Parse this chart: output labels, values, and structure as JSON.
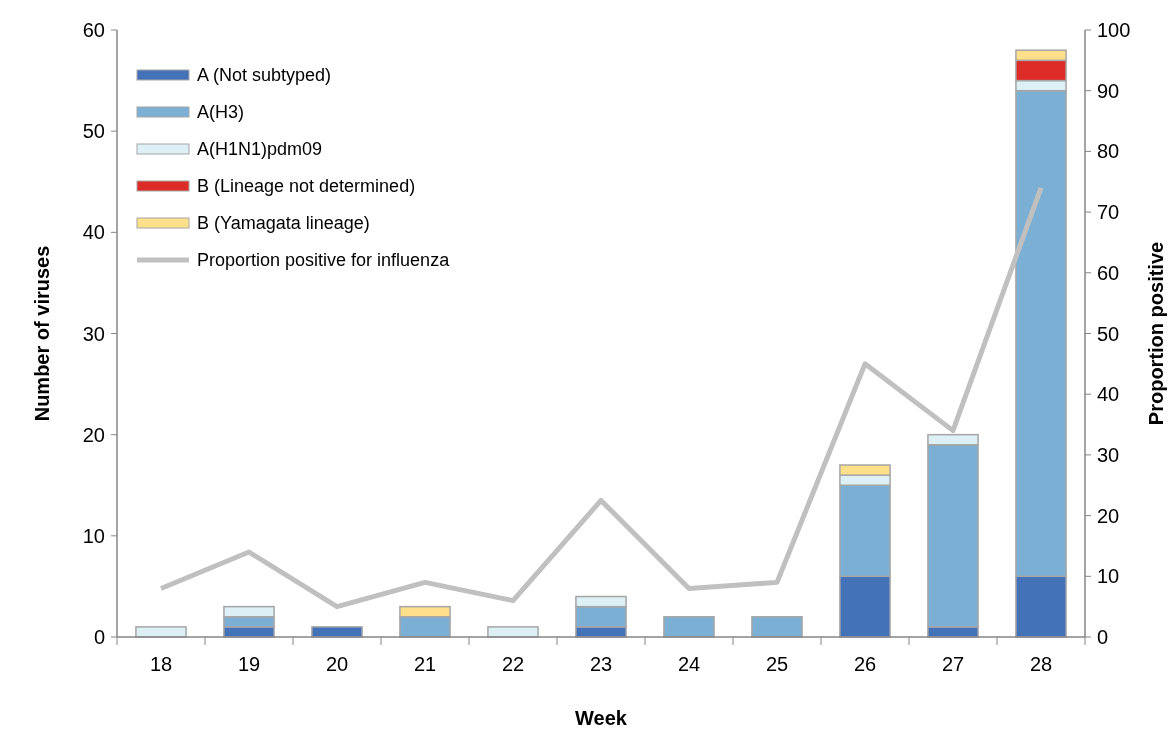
{
  "chart_data": {
    "type": "bar",
    "stacked": true,
    "xlabel": "Week",
    "ylabel": "Number of viruses",
    "y2label": "Proportion positive",
    "categories": [
      "18",
      "19",
      "20",
      "21",
      "22",
      "23",
      "24",
      "25",
      "26",
      "27",
      "28"
    ],
    "ylim": [
      0,
      60
    ],
    "yticks": [
      0,
      10,
      20,
      30,
      40,
      50,
      60
    ],
    "y2lim": [
      0,
      100
    ],
    "y2ticks": [
      0,
      10,
      20,
      30,
      40,
      50,
      60,
      70,
      80,
      90,
      100
    ],
    "grid": false,
    "legend": "top left",
    "series": [
      {
        "name": "A (Not subtyped)",
        "color": "#4472b8",
        "values": [
          0,
          1,
          1,
          0,
          0,
          1,
          0,
          0,
          6,
          1,
          6
        ]
      },
      {
        "name": "A(H3)",
        "color": "#7bafd4",
        "values": [
          0,
          1,
          0,
          2,
          0,
          2,
          2,
          2,
          9,
          18,
          48
        ]
      },
      {
        "name": "A(H1N1)pdm09",
        "color": "#dcf0f6",
        "values": [
          1,
          1,
          0,
          0,
          1,
          1,
          0,
          0,
          1,
          1,
          1
        ]
      },
      {
        "name": "B (Lineage not determined)",
        "color": "#dd2c27",
        "values": [
          0,
          0,
          0,
          0,
          0,
          0,
          0,
          0,
          0,
          0,
          2
        ]
      },
      {
        "name": "B (Yamagata lineage)",
        "color": "#ffe08a",
        "values": [
          0,
          0,
          0,
          1,
          0,
          0,
          0,
          0,
          1,
          0,
          1
        ]
      },
      {
        "name": "Proportion positive for influenza",
        "type": "line",
        "axis": "y2",
        "color": "#c0c0c0",
        "values": [
          8,
          14,
          5,
          9,
          6,
          22.5,
          8,
          9,
          45,
          34,
          74
        ]
      }
    ]
  }
}
